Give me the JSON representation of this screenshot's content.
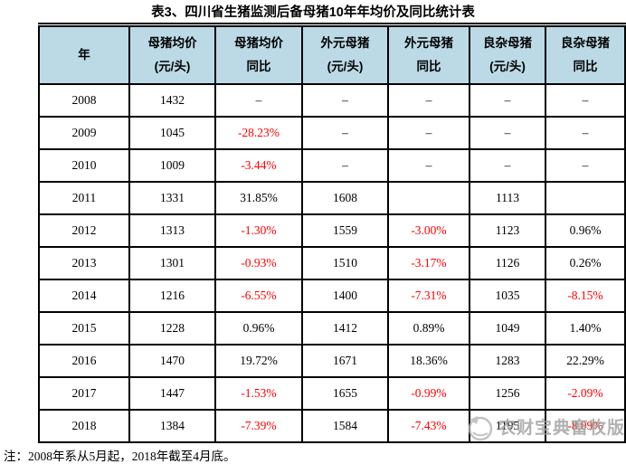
{
  "chart_data": {
    "type": "table",
    "title": "表3、四川省生猪监测后备母猪10年年均价及同比统计表",
    "columns": [
      {
        "l1": "年",
        "l2": ""
      },
      {
        "l1": "母猪均价",
        "l2": "(元/头)"
      },
      {
        "l1": "母猪均价",
        "l2": "同比"
      },
      {
        "l1": "外元母猪",
        "l2": "(元/头)"
      },
      {
        "l1": "外元母猪",
        "l2": "同比"
      },
      {
        "l1": "良杂母猪",
        "l2": "(元/头)"
      },
      {
        "l1": "良杂母猪",
        "l2": "同比"
      }
    ],
    "rows": [
      [
        "2008",
        "1432",
        "–",
        "–",
        "–",
        "–",
        "–"
      ],
      [
        "2009",
        "1045",
        "-28.23%",
        "–",
        "–",
        "–",
        "–"
      ],
      [
        "2010",
        "1009",
        "-3.44%",
        "–",
        "–",
        "–",
        "–"
      ],
      [
        "2011",
        "1331",
        "31.85%",
        "1608",
        "",
        "1113",
        ""
      ],
      [
        "2012",
        "1313",
        "-1.30%",
        "1559",
        "-3.00%",
        "1123",
        "0.96%"
      ],
      [
        "2013",
        "1301",
        "-0.93%",
        "1510",
        "-3.17%",
        "1126",
        "0.26%"
      ],
      [
        "2014",
        "1216",
        "-6.55%",
        "1400",
        "-7.31%",
        "1035",
        "-8.15%"
      ],
      [
        "2015",
        "1228",
        "0.96%",
        "1412",
        "0.89%",
        "1049",
        "1.40%"
      ],
      [
        "2016",
        "1470",
        "19.72%",
        "1671",
        "18.36%",
        "1283",
        "22.29%"
      ],
      [
        "2017",
        "1447",
        "-1.53%",
        "1655",
        "-0.99%",
        "1256",
        "-2.09%"
      ],
      [
        "2018",
        "1384",
        "-7.39%",
        "1584",
        "-7.43%",
        "1195",
        "-8.09%"
      ]
    ],
    "note": "注：2008年系从5月起，2018年截至4月底。"
  },
  "watermark": {
    "text": "农财宝典畜牧版"
  },
  "colors": {
    "header_bg": "#BCDAE6",
    "border": "#000000",
    "text": "#000000",
    "negative": "#FF0000",
    "watermark": "#9E9E9E"
  }
}
